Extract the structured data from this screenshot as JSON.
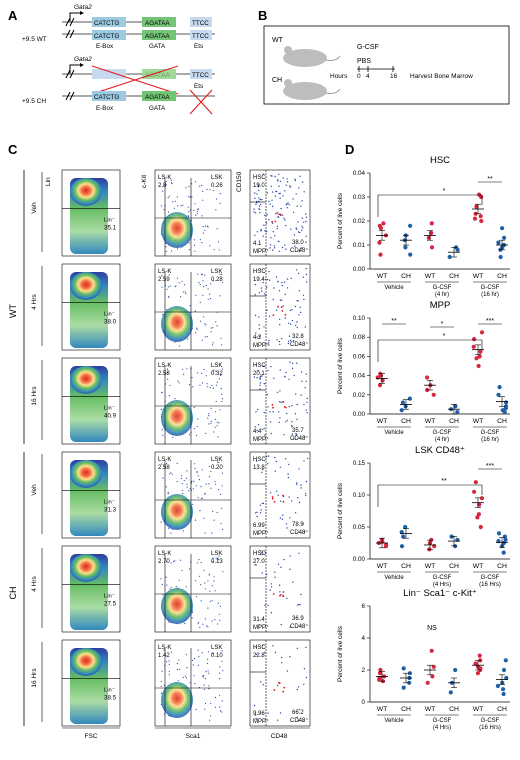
{
  "panels": {
    "a": "A",
    "b": "B",
    "c": "C",
    "d": "D"
  },
  "panelA": {
    "gene": "Gata2",
    "wt_label": "+9.5 WT",
    "ch_label": "+9.5 CH",
    "ebox_seq": "CATCTG",
    "gata_seq": "AGATAA",
    "ets_seq": "TTCC",
    "ebox_name": "E-Box",
    "gata_name": "GATA",
    "ets_name": "Ets"
  },
  "panelB": {
    "wt": "WT",
    "ch": "CH",
    "gcsf": "G-CSF",
    "pbs": "PBS",
    "hours": "Hours",
    "t0": "0",
    "t4": "4",
    "t16": "16",
    "harvest": "Harvest Bone Marrow"
  },
  "panelC": {
    "group_wt": "WT",
    "group_ch": "CH",
    "row_labels": [
      "Veh",
      "4 Hrs",
      "16 Hrs",
      "Veh",
      "4 Hrs",
      "16 Hrs"
    ],
    "col1_y": "Lin",
    "col1_x": "FSC",
    "col2_y": "c-Kit",
    "col2_x": "Sca1",
    "col3_y": "CD150",
    "col3_x": "CD48",
    "lin_gate_label": "Lin⁻",
    "lsk_label": "LSK",
    "lsneg_label": "LS-K",
    "hsc_label": "HSC",
    "mpp_label": "MPP⁺",
    "cd48_label": "CD48⁺",
    "rows": [
      {
        "lin": "35.1",
        "lsk_neg": "2.8",
        "lsk": "0.26",
        "hsc": "19.0",
        "mpp": "4.1",
        "cd48": "38.0"
      },
      {
        "lin": "38.0",
        "lsk_neg": "2.59",
        "lsk": "0.28",
        "hsc": "19.4",
        "mpp": "4.2",
        "cd48": "32.8"
      },
      {
        "lin": "40.9",
        "lsk_neg": "2.58",
        "lsk": "0.32",
        "hsc": "20.1",
        "mpp": "4.4",
        "cd48": "35.7"
      },
      {
        "lin": "31.3",
        "lsk_neg": "2.58",
        "lsk": "0.20",
        "hsc": "13.8",
        "mpp": "6.99",
        "cd48": "78.9"
      },
      {
        "lin": "27.5",
        "lsk_neg": "2.70",
        "lsk": "0.13",
        "hsc": "27.0",
        "mpp": "31.4",
        "cd48": "36.9"
      },
      {
        "lin": "38.5",
        "lsk_neg": "1.42",
        "lsk": "0.10",
        "hsc": "22.8",
        "mpp": "9.96",
        "cd48": "66.2"
      }
    ]
  },
  "colors": {
    "wt": "#d7263d",
    "ch": "#1f5fa8",
    "gate_red": "#e41a1c"
  },
  "chart_data": [
    {
      "type": "scatter",
      "title": "HSC",
      "ylabel": "Percent of live cells",
      "ylim": [
        0,
        0.04
      ],
      "yticks": [
        "0.00",
        "0.01",
        "0.02",
        "0.03",
        "0.04"
      ],
      "yvals": [
        0,
        0.01,
        0.02,
        0.03,
        0.04
      ],
      "groups": [
        {
          "name": "WT",
          "cond": "Vehicle",
          "values": [
            0.006,
            0.011,
            0.014,
            0.017,
            0.019,
            0.018
          ],
          "mean": 0.014
        },
        {
          "name": "CH",
          "cond": "Vehicle",
          "values": [
            0.006,
            0.009,
            0.012,
            0.014,
            0.018
          ],
          "mean": 0.012
        },
        {
          "name": "WT",
          "cond": "G-CSF (4 hr)",
          "values": [
            0.009,
            0.013,
            0.015,
            0.019
          ],
          "mean": 0.014
        },
        {
          "name": "CH",
          "cond": "G-CSF (4 hr)",
          "values": [
            0.005,
            0.008,
            0.009
          ],
          "mean": 0.007
        },
        {
          "name": "WT",
          "cond": "G-CSF (16 hr)",
          "values": [
            0.02,
            0.021,
            0.023,
            0.026,
            0.03,
            0.031,
            0.022
          ],
          "mean": 0.025
        },
        {
          "name": "CH",
          "cond": "G-CSF (16 hr)",
          "values": [
            0.005,
            0.008,
            0.01,
            0.011,
            0.013,
            0.017,
            0.009
          ],
          "mean": 0.01
        }
      ],
      "cond_labels": [
        "Vehicle",
        "G-CSF\n(4 hr)",
        "G-CSF\n(16 hr)"
      ],
      "sig": [
        {
          "from": 0,
          "to": 4,
          "label": "*",
          "bracket": "wide"
        },
        {
          "from": 4,
          "to": 5,
          "label": "**",
          "bracket": "pair"
        }
      ]
    },
    {
      "type": "scatter",
      "title": "MPP",
      "ylabel": "Percent of live cells",
      "ylim": [
        0,
        0.1
      ],
      "yticks": [
        "0.00",
        "0.02",
        "0.04",
        "0.06",
        "0.08",
        "0.10"
      ],
      "yvals": [
        0,
        0.02,
        0.04,
        0.06,
        0.08,
        0.1
      ],
      "groups": [
        {
          "name": "WT",
          "cond": "Vehicle",
          "values": [
            0.03,
            0.035,
            0.038,
            0.04,
            0.042
          ],
          "mean": 0.037
        },
        {
          "name": "CH",
          "cond": "Vehicle",
          "values": [
            0.004,
            0.008,
            0.012,
            0.016
          ],
          "mean": 0.01
        },
        {
          "name": "WT",
          "cond": "G-CSF (4 hr)",
          "values": [
            0.02,
            0.03,
            0.038,
            0.025
          ],
          "mean": 0.03
        },
        {
          "name": "CH",
          "cond": "G-CSF (4 hr)",
          "values": [
            0.002,
            0.005,
            0.008
          ],
          "mean": 0.005
        },
        {
          "name": "WT",
          "cond": "G-CSF (16 hr)",
          "values": [
            0.05,
            0.058,
            0.065,
            0.07,
            0.078,
            0.085,
            0.06
          ],
          "mean": 0.067
        },
        {
          "name": "CH",
          "cond": "G-CSF (16 hr)",
          "values": [
            0.002,
            0.004,
            0.008,
            0.012,
            0.02,
            0.028,
            0.006
          ],
          "mean": 0.013
        }
      ],
      "cond_labels": [
        "Vehicle",
        "G-CSF\n(4 hr)",
        "G-CSF\n(16 hr)"
      ],
      "sig": [
        {
          "from": 0,
          "to": 1,
          "label": "**",
          "bracket": "pair"
        },
        {
          "from": 2,
          "to": 3,
          "label": "*",
          "bracket": "pair"
        },
        {
          "from": 4,
          "to": 5,
          "label": "***",
          "bracket": "pair"
        },
        {
          "from": 0,
          "to": 4,
          "label": "*",
          "bracket": "wide"
        }
      ]
    },
    {
      "type": "scatter",
      "title": "LSK CD48⁺",
      "ylabel": "Percent of live cells",
      "ylim": [
        0,
        0.15
      ],
      "yticks": [
        "0.00",
        "0.05",
        "0.10",
        "0.15"
      ],
      "yvals": [
        0,
        0.05,
        0.1,
        0.15
      ],
      "groups": [
        {
          "name": "WT",
          "cond": "Vehicle",
          "values": [
            0.02,
            0.022,
            0.025,
            0.03,
            0.027
          ],
          "mean": 0.025
        },
        {
          "name": "CH",
          "cond": "Vehicle",
          "values": [
            0.02,
            0.035,
            0.05,
            0.042
          ],
          "mean": 0.04
        },
        {
          "name": "WT",
          "cond": "G-CSF (4 Hrs)",
          "values": [
            0.015,
            0.02,
            0.025,
            0.03
          ],
          "mean": 0.022
        },
        {
          "name": "CH",
          "cond": "G-CSF (4 Hrs)",
          "values": [
            0.02,
            0.03,
            0.035
          ],
          "mean": 0.028
        },
        {
          "name": "WT",
          "cond": "G-CSF (16 Hrs)",
          "values": [
            0.05,
            0.07,
            0.085,
            0.095,
            0.105,
            0.12,
            0.065
          ],
          "mean": 0.088
        },
        {
          "name": "CH",
          "cond": "G-CSF (16 Hrs)",
          "values": [
            0.01,
            0.02,
            0.025,
            0.03,
            0.035,
            0.04,
            0.028
          ],
          "mean": 0.026
        }
      ],
      "cond_labels": [
        "Vehicle",
        "G-CSF\n(4 Hrs)",
        "G-CSF\n(16 Hrs)"
      ],
      "sig": [
        {
          "from": 4,
          "to": 5,
          "label": "***",
          "bracket": "pair"
        },
        {
          "from": 0,
          "to": 4,
          "label": "**",
          "bracket": "wide"
        }
      ]
    },
    {
      "type": "scatter",
      "title": "Lin⁻ Sca1⁻ c-Kit⁺",
      "ylabel": "Percent of live cells",
      "ylim": [
        0,
        6
      ],
      "yticks": [
        "0",
        "2",
        "4",
        "6"
      ],
      "yvals": [
        0,
        2,
        4,
        6
      ],
      "groups": [
        {
          "name": "WT",
          "cond": "Vehicle",
          "values": [
            1.3,
            1.5,
            1.6,
            1.8,
            2.0,
            1.4
          ],
          "mean": 1.6
        },
        {
          "name": "CH",
          "cond": "Vehicle",
          "values": [
            0.9,
            1.2,
            1.5,
            1.8,
            2.1
          ],
          "mean": 1.5
        },
        {
          "name": "WT",
          "cond": "G-CSF (4 Hrs)",
          "values": [
            1.2,
            1.6,
            2.2,
            3.2
          ],
          "mean": 2.0
        },
        {
          "name": "CH",
          "cond": "G-CSF (4 Hrs)",
          "values": [
            0.6,
            1.2,
            2.0
          ],
          "mean": 1.2
        },
        {
          "name": "WT",
          "cond": "G-CSF (16 Hrs)",
          "values": [
            1.8,
            2.0,
            2.2,
            2.4,
            2.6,
            2.9,
            2.1
          ],
          "mean": 2.3
        },
        {
          "name": "CH",
          "cond": "G-CSF (16 Hrs)",
          "values": [
            0.5,
            0.8,
            1.2,
            1.5,
            2.0,
            2.6,
            1.0
          ],
          "mean": 1.4
        }
      ],
      "cond_labels": [
        "Vehicle",
        "G-CSF\n(4 Hrs)",
        "G-CSF\n(16 Hrs)"
      ],
      "ns_label": "NS",
      "sig": []
    }
  ]
}
